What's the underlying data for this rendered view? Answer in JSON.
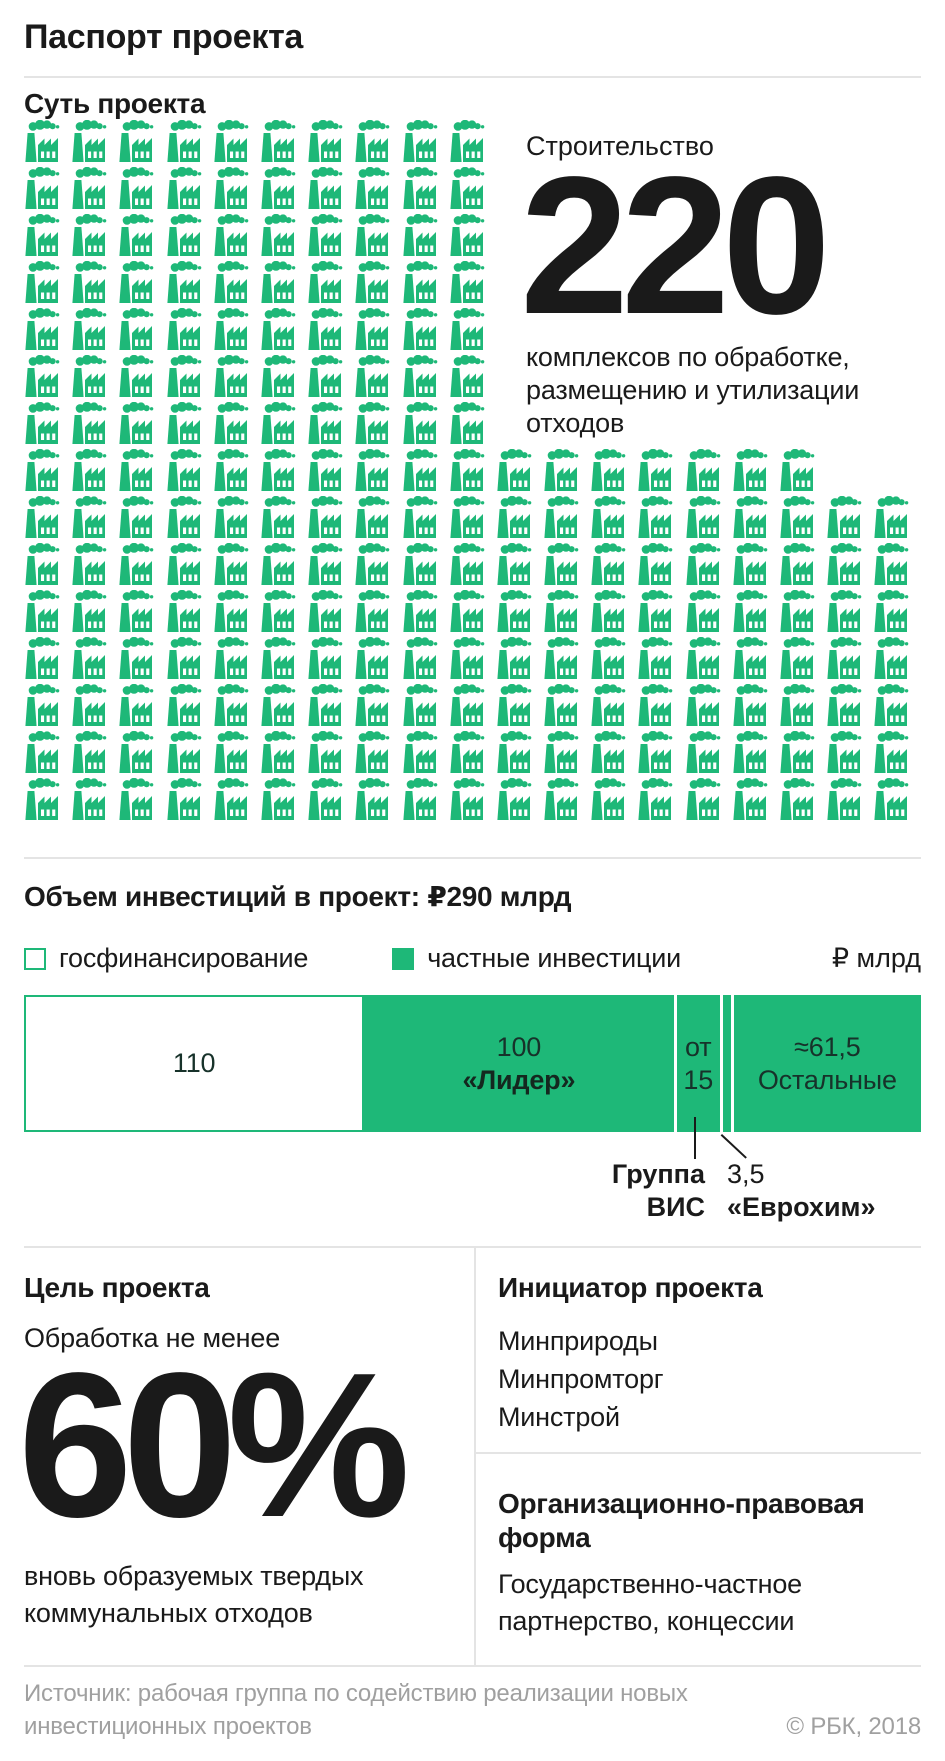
{
  "page": {
    "title": "Паспорт проекта"
  },
  "colors": {
    "accent_green": "#1eb878",
    "text": "#1a1a1a",
    "muted": "#a0a0a0",
    "divider": "#e4e4e4"
  },
  "essence": {
    "heading": "Суть проекта",
    "lead": "Строительство",
    "big_number": "220",
    "description_lines": [
      "комплексов по обработке,",
      "размещению и утилизации",
      "отходов"
    ],
    "icon": "factory-icon"
  },
  "investment": {
    "heading": "Объем инвестиций в проект: ₽290 млрд",
    "unit_label": "₽ млрд",
    "legend": [
      {
        "label": "госфинансирование",
        "swatch": "outline"
      },
      {
        "label": "частные инвестиции",
        "swatch": "filled"
      }
    ]
  },
  "goal": {
    "heading": "Цель проекта",
    "lead": "Обработка не менее",
    "big_number": "60%",
    "description_lines": [
      "вновь образуемых твердых",
      "коммунальных отходов"
    ]
  },
  "initiator": {
    "heading": "Инициатор проекта",
    "items": [
      "Минприроды",
      "Минпромторг",
      "Минстрой"
    ]
  },
  "legal_form": {
    "heading_lines": [
      "Организационно-правовая",
      "форма"
    ],
    "description_lines": [
      "Государственно-частное",
      "партнерство, концессии"
    ]
  },
  "footer": {
    "source_lines": [
      "Источник: рабочая группа по содействию реализации новых",
      "инвестиционных проектов"
    ],
    "copyright": "© РБК, 2018"
  },
  "chart_data": [
    {
      "type": "pictograph",
      "title": "Суть проекта",
      "icon": "factory-icon",
      "icon_value": 1,
      "total": 220,
      "annotation": "Строительство 220 комплексов по обработке, размещению и утилизации отходов",
      "rows": [
        10,
        10,
        10,
        10,
        10,
        10,
        10,
        17,
        19,
        19,
        19,
        19,
        19,
        19,
        19
      ]
    },
    {
      "type": "bar",
      "subtype": "horizontal-stacked",
      "title": "Объем инвестиций в проект: ₽290 млрд",
      "unit": "₽ млрд",
      "total": 290,
      "legend": [
        "госфинансирование",
        "частные инвестиции"
      ],
      "segments": [
        {
          "value": 110,
          "category": "госфинансирование",
          "label_lines": [
            "110"
          ],
          "bold_line": -1,
          "fill": "outline"
        },
        {
          "value": 100,
          "category": "частные инвестиции",
          "label_lines": [
            "100",
            "«Лидер»"
          ],
          "bold_line": 1,
          "fill": "green"
        },
        {
          "value": 15,
          "category": "частные инвестиции",
          "label_lines": [
            "от",
            "15"
          ],
          "bold_line": -1,
          "fill": "green"
        },
        {
          "value": 3.5,
          "category": "частные инвестиции",
          "label_lines": [],
          "bold_line": -1,
          "fill": "green"
        },
        {
          "value": 61.5,
          "category": "частные инвестиции",
          "label_lines": [
            "≈61,5",
            "Остальные"
          ],
          "bold_line": -1,
          "fill": "green"
        }
      ],
      "callouts": [
        {
          "lines": [
            "Группа",
            "ВИС"
          ],
          "bold_lines": [
            0,
            1
          ],
          "target": "от 15"
        },
        {
          "lines": [
            "3,5",
            "«Еврохим»"
          ],
          "bold_lines": [
            1
          ],
          "target": "3,5"
        }
      ]
    }
  ]
}
